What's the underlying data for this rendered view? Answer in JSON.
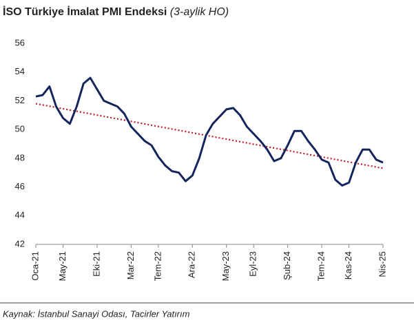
{
  "chart_data": {
    "type": "line",
    "title": "İSO Türkiye İmalat PMI Endeksi",
    "subtitle": "(3-aylik HO)",
    "source": "Kaynak: İstanbul Sanayi Odası, Tacirler Yatırım",
    "categories": [
      "Oca-21",
      null,
      null,
      null,
      "May-21",
      null,
      null,
      null,
      null,
      "Eki-21",
      null,
      null,
      null,
      null,
      "Mar-22",
      null,
      null,
      null,
      "Tem-22",
      null,
      null,
      null,
      null,
      "Ara-22",
      null,
      null,
      null,
      null,
      "May-23",
      null,
      null,
      null,
      "Eyl-23",
      null,
      null,
      null,
      null,
      "Şub-24",
      null,
      null,
      null,
      null,
      "Tem-24",
      null,
      null,
      null,
      "Kas-24",
      null,
      null,
      null,
      null,
      "Nis-25"
    ],
    "series": [
      {
        "color": "#13255c",
        "values": [
          52.3,
          52.4,
          53.0,
          51.6,
          50.8,
          50.4,
          51.6,
          53.2,
          53.6,
          52.8,
          52.0,
          51.8,
          51.6,
          51.1,
          50.2,
          49.7,
          49.2,
          48.9,
          48.1,
          47.5,
          47.1,
          47.0,
          46.4,
          46.8,
          48.0,
          49.6,
          50.4,
          50.9,
          51.4,
          51.5,
          51.0,
          50.2,
          49.7,
          49.2,
          48.6,
          47.8,
          48.0,
          48.9,
          49.9,
          49.9,
          49.2,
          48.6,
          47.9,
          47.7,
          46.5,
          46.1,
          46.3,
          47.7,
          48.6,
          48.6,
          47.9,
          47.7
        ]
      }
    ],
    "trend": {
      "color": "#c0152a",
      "values": [
        51.8,
        47.3
      ]
    },
    "ylim": [
      42,
      56
    ],
    "yticks": [
      42,
      44,
      46,
      48,
      50,
      52,
      54,
      56
    ],
    "grid": false
  }
}
